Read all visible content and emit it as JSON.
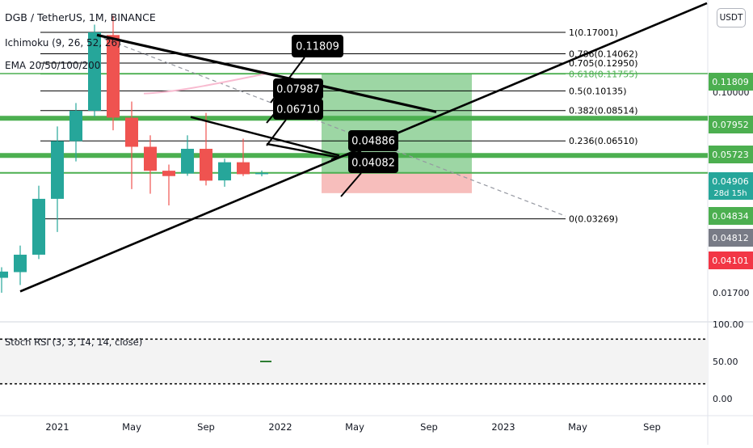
{
  "header": {
    "symbol_title": "DGB / TetherUS, 1M, BINANCE",
    "indicator_ichimoku": "Ichimoku (9, 26, 52, 26)",
    "indicator_ema": "EMA 20/50/100/200",
    "indicator_stoch": "Stoch RSI (3, 3, 14, 14, close)",
    "currency_button": "USDT"
  },
  "chart_data": {
    "type": "candlestick",
    "title": "DGB / TetherUS, 1M, BINANCE",
    "interval": "1M",
    "exchange": "BINANCE",
    "log_scale": true,
    "y_range": [
      0.012,
      0.26
    ],
    "x_range": [
      "2020-08",
      "2023-11"
    ],
    "x_tick_labels": [
      {
        "date": "2021-01",
        "label": "2021"
      },
      {
        "date": "2021-05",
        "label": "May"
      },
      {
        "date": "2021-09",
        "label": "Sep"
      },
      {
        "date": "2022-01",
        "label": "2022"
      },
      {
        "date": "2022-05",
        "label": "May"
      },
      {
        "date": "2022-09",
        "label": "Sep"
      },
      {
        "date": "2023-01",
        "label": "2023"
      },
      {
        "date": "2023-05",
        "label": "May"
      },
      {
        "date": "2023-09",
        "label": "Sep"
      }
    ],
    "y_tick_labels": [
      {
        "value": 0.1,
        "label": "0.10000"
      },
      {
        "value": 0.017,
        "label": "0.01700"
      }
    ],
    "candles": [
      {
        "date": "2020-08",
        "open": 0.0206,
        "high": 0.0232,
        "low": 0.0153,
        "close": 0.0165
      },
      {
        "date": "2020-09",
        "open": 0.0157,
        "high": 0.0214,
        "low": 0.0134,
        "close": 0.0193
      },
      {
        "date": "2020-10",
        "open": 0.0194,
        "high": 0.0213,
        "low": 0.017,
        "close": 0.0205
      },
      {
        "date": "2020-11",
        "open": 0.0204,
        "high": 0.0258,
        "low": 0.0182,
        "close": 0.0238
      },
      {
        "date": "2020-12",
        "open": 0.0238,
        "high": 0.0438,
        "low": 0.0229,
        "close": 0.039
      },
      {
        "date": "2021-01",
        "open": 0.039,
        "high": 0.074,
        "low": 0.0291,
        "close": 0.065
      },
      {
        "date": "2021-02",
        "open": 0.065,
        "high": 0.091,
        "low": 0.0543,
        "close": 0.085
      },
      {
        "date": "2021-03",
        "open": 0.085,
        "high": 0.182,
        "low": 0.0807,
        "close": 0.17
      },
      {
        "date": "2021-04",
        "open": 0.166,
        "high": 0.197,
        "low": 0.0715,
        "close": 0.08
      },
      {
        "date": "2021-05",
        "open": 0.0799,
        "high": 0.0922,
        "low": 0.0425,
        "close": 0.0618
      },
      {
        "date": "2021-06",
        "open": 0.0618,
        "high": 0.0684,
        "low": 0.0408,
        "close": 0.05
      },
      {
        "date": "2021-07",
        "open": 0.05,
        "high": 0.0528,
        "low": 0.0368,
        "close": 0.0477
      },
      {
        "date": "2021-08",
        "open": 0.0488,
        "high": 0.0684,
        "low": 0.0478,
        "close": 0.0607
      },
      {
        "date": "2021-09",
        "open": 0.0607,
        "high": 0.0834,
        "low": 0.0439,
        "close": 0.0458
      },
      {
        "date": "2021-10",
        "open": 0.0459,
        "high": 0.0556,
        "low": 0.0434,
        "close": 0.0539
      },
      {
        "date": "2021-11",
        "open": 0.0539,
        "high": 0.0664,
        "low": 0.0477,
        "close": 0.0485
      },
      {
        "date": "2021-12",
        "open": 0.0485,
        "high": 0.0501,
        "low": 0.0476,
        "close": 0.04906
      }
    ],
    "fib_levels": [
      {
        "label": "1(0.17001)",
        "value": 0.17001,
        "color": "#000000"
      },
      {
        "label": "0.786(0.14062)",
        "value": 0.14062,
        "color": "#000000"
      },
      {
        "label": "0.705(0.12950)",
        "value": 0.1295,
        "color": "#000000"
      },
      {
        "label": "0.618(0.11755)",
        "value": 0.11755,
        "color": "#4caf50"
      },
      {
        "label": "0.5(0.10135)",
        "value": 0.10135,
        "color": "#000000"
      },
      {
        "label": "0.382(0.08514)",
        "value": 0.08514,
        "color": "#000000"
      },
      {
        "label": "0.236(0.06510)",
        "value": 0.0651,
        "color": "#000000"
      },
      {
        "label": "0(0.03269)",
        "value": 0.03269,
        "color": "#000000"
      }
    ],
    "horizontal_levels": [
      {
        "value": 0.11809,
        "color": "#4caf50"
      },
      {
        "value": 0.07952,
        "color": "#4caf50"
      },
      {
        "value": 0.05723,
        "color": "#4caf50"
      },
      {
        "value": 0.04906,
        "color": "#4caf50"
      }
    ],
    "callouts": [
      "0.11809",
      "0.07987",
      "0.06710",
      "0.04886",
      "0.04082"
    ],
    "position": {
      "entry": 0.04906,
      "target": 0.11809,
      "stop": 0.04101,
      "profit_color": "#8ccf94",
      "loss_color": "#f6b3b0"
    },
    "price_scale_labels": [
      {
        "value": 0.11809,
        "label": "0.11809",
        "bg": "#4caf50",
        "fg": "#ffffff"
      },
      {
        "value": 0.07952,
        "label": "0.07952",
        "bg": "#4caf50",
        "fg": "#ffffff"
      },
      {
        "value": 0.05723,
        "label": "0.05723",
        "bg": "#4caf50",
        "fg": "#ffffff"
      },
      {
        "value": 0.04906,
        "label": "0.04906",
        "sublabel": "28d 15h",
        "bg": "#26a69a",
        "fg": "#ffffff"
      },
      {
        "value": 0.04834,
        "label": "0.04834",
        "bg": "#4caf50",
        "fg": "#ffffff"
      },
      {
        "value": 0.04812,
        "label": "0.04812",
        "bg": "#787b86",
        "fg": "#ffffff"
      },
      {
        "value": 0.04101,
        "label": "0.04101",
        "bg": "#f23645",
        "fg": "#ffffff"
      }
    ],
    "stoch_rsi": {
      "y_range": [
        0,
        100
      ],
      "y_tick_labels": [
        "100.00",
        "50.00",
        "0.00"
      ],
      "bands": [
        80,
        20
      ],
      "value": 50
    },
    "colors": {
      "up": "#26a69a",
      "down": "#ef5350",
      "trendline": "#000000",
      "grid": "#f0f3fa"
    }
  }
}
